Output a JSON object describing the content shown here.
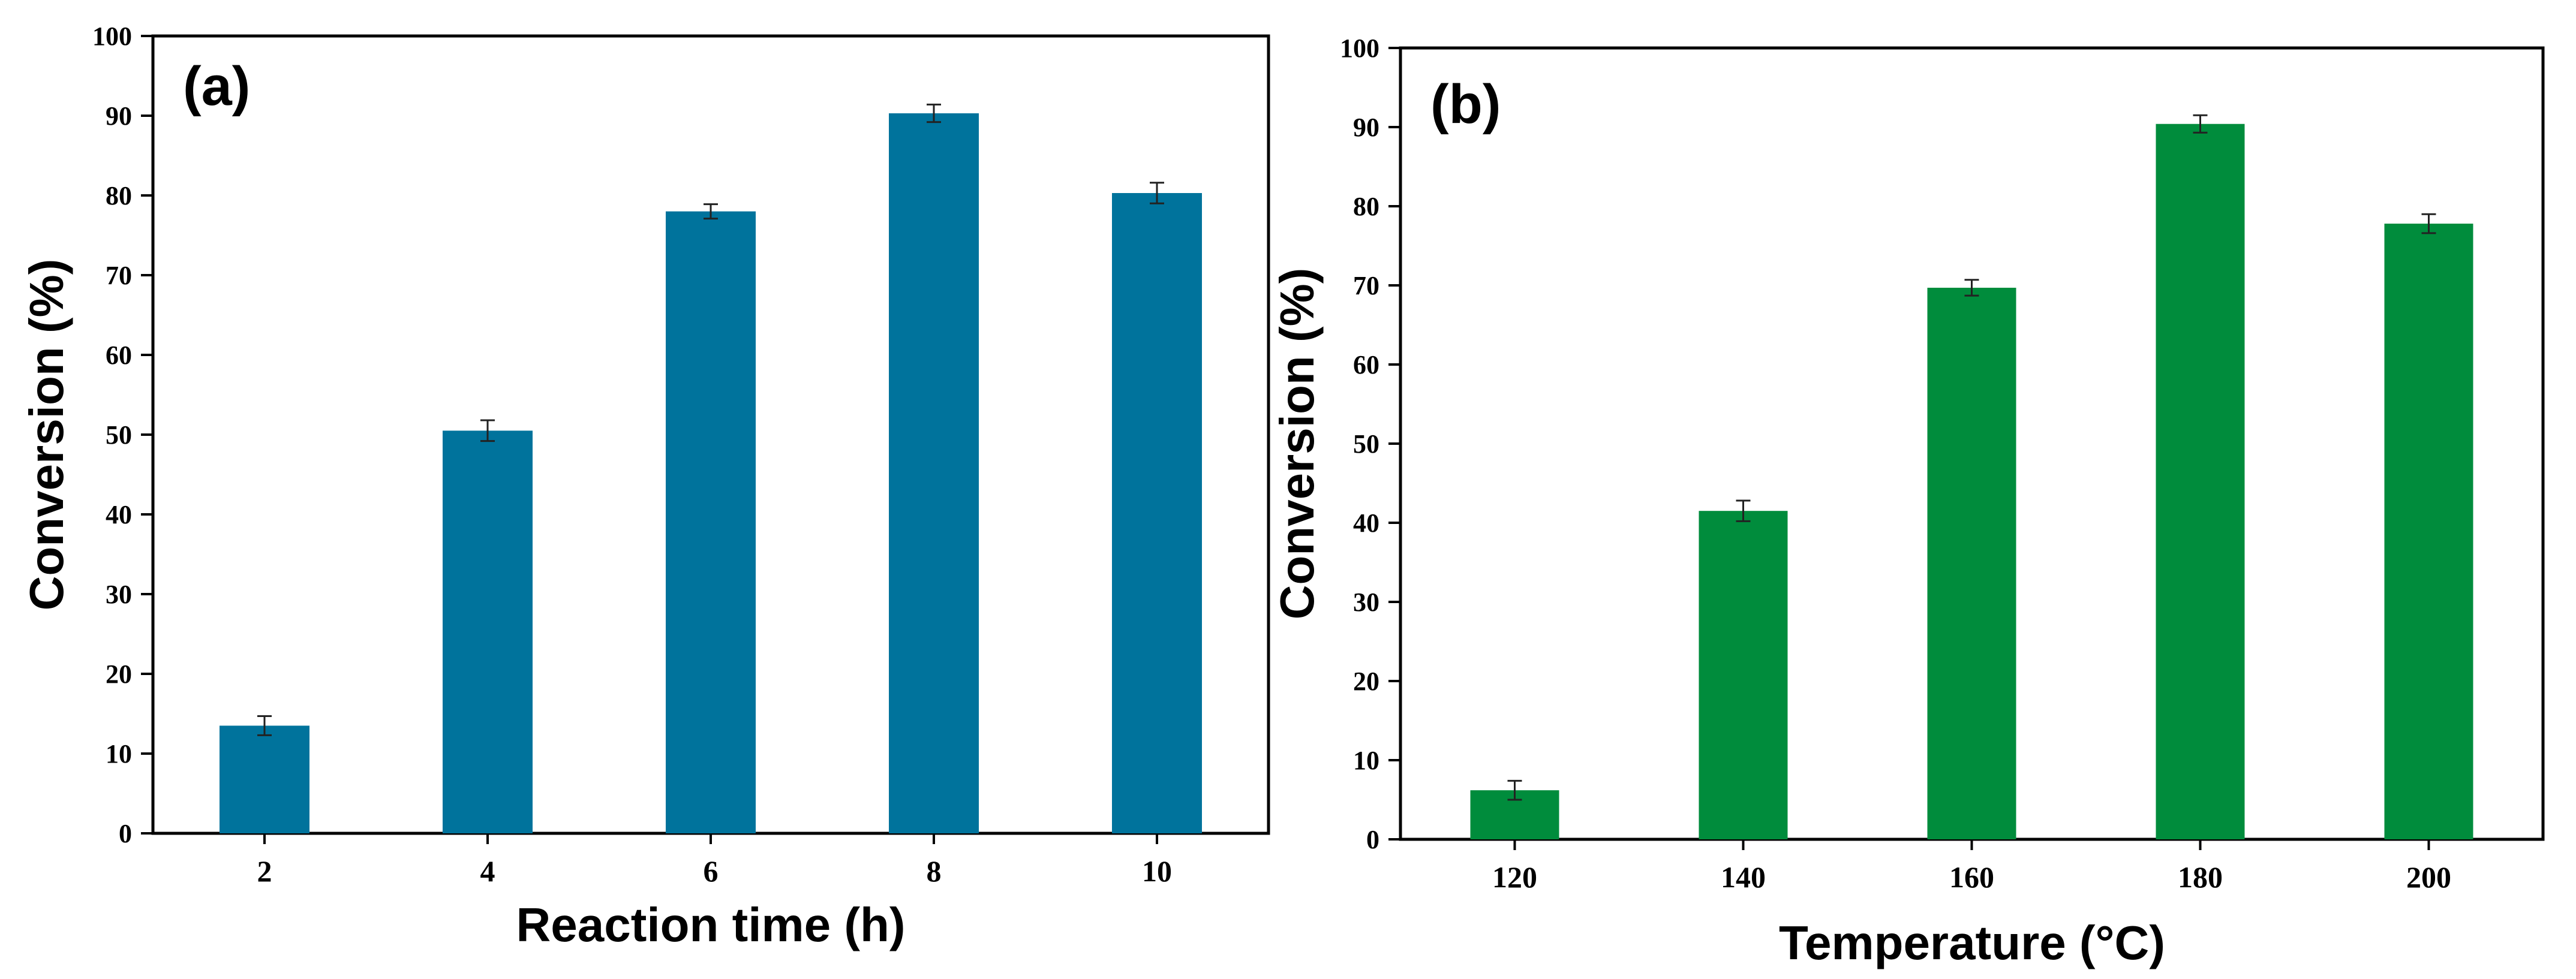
{
  "chart_data": [
    {
      "type": "bar",
      "panel_label": "(a)",
      "categories": [
        "2",
        "4",
        "6",
        "8",
        "10"
      ],
      "values": [
        13.5,
        50.5,
        78,
        90.3,
        80.3
      ],
      "errors": [
        1.2,
        1.3,
        0.9,
        1.1,
        1.3
      ],
      "xlabel": "Reaction time (h)",
      "ylabel": "Conversion (%)",
      "ylim": [
        0,
        100
      ],
      "yticks": [
        0,
        10,
        20,
        30,
        40,
        50,
        60,
        70,
        80,
        90,
        100
      ],
      "color": "#00739c"
    },
    {
      "type": "bar",
      "panel_label": "(b)",
      "categories": [
        "120",
        "140",
        "160",
        "180",
        "200"
      ],
      "values": [
        6.2,
        41.5,
        69.7,
        90.4,
        77.8
      ],
      "errors": [
        1.2,
        1.3,
        1.0,
        1.1,
        1.2
      ],
      "xlabel": "Temperature (°C)",
      "ylabel": "Conversion (%)",
      "ylim": [
        0,
        100
      ],
      "yticks": [
        0,
        10,
        20,
        30,
        40,
        50,
        60,
        70,
        80,
        90,
        100
      ],
      "color": "#008c3c"
    }
  ]
}
